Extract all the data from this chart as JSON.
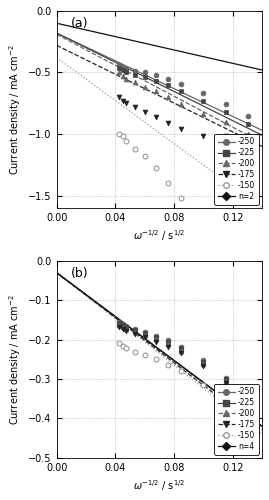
{
  "panel_a": {
    "label": "(a)",
    "ylim": [
      -1.6,
      0
    ],
    "yticks": [
      -1.5,
      -1.0,
      -0.5,
      0
    ],
    "ylabel": "Current density / mA cm$^{-2}$",
    "xlabel": "$\\omega^{-1/2}$ / s$^{1/2}$",
    "xlim": [
      0,
      0.14
    ],
    "xticks": [
      0,
      0.04,
      0.08,
      0.12
    ],
    "series": [
      {
        "label": "-250",
        "marker": "o",
        "linestyle": "-",
        "color": "#666666",
        "filled": true,
        "x_data": [
          0.0426,
          0.0451,
          0.0476,
          0.0535,
          0.0601,
          0.0674,
          0.0756,
          0.0849,
          0.1,
          0.1155,
          0.1301
        ],
        "y_data": [
          -0.44,
          -0.46,
          -0.47,
          -0.49,
          -0.5,
          -0.52,
          -0.55,
          -0.59,
          -0.67,
          -0.76,
          -0.85
        ],
        "fit_x": [
          0.0,
          0.14
        ],
        "fit_y": [
          -0.18,
          -0.97
        ]
      },
      {
        "label": "-225",
        "marker": "s",
        "linestyle": "-",
        "color": "#444444",
        "filled": true,
        "x_data": [
          0.0426,
          0.0451,
          0.0476,
          0.0535,
          0.0601,
          0.0674,
          0.0756,
          0.0849,
          0.1,
          0.1155,
          0.1301
        ],
        "y_data": [
          -0.46,
          -0.48,
          -0.5,
          -0.52,
          -0.54,
          -0.57,
          -0.6,
          -0.65,
          -0.73,
          -0.82,
          -0.92
        ],
        "fit_x": [
          0.0,
          0.14
        ],
        "fit_y": [
          -0.18,
          -1.01
        ]
      },
      {
        "label": "-200",
        "marker": "^",
        "linestyle": "--",
        "color": "#666666",
        "filled": true,
        "x_data": [
          0.0426,
          0.0451,
          0.0476,
          0.0535,
          0.0601,
          0.0674,
          0.0756,
          0.0849,
          0.1,
          0.1155,
          0.1301
        ],
        "y_data": [
          -0.5,
          -0.53,
          -0.55,
          -0.58,
          -0.62,
          -0.65,
          -0.7,
          -0.76,
          -0.84,
          -0.9,
          -1.0
        ],
        "fit_x": [
          0.0,
          0.14
        ],
        "fit_y": [
          -0.19,
          -1.07
        ]
      },
      {
        "label": "-175",
        "marker": "v",
        "linestyle": "--",
        "color": "#222222",
        "filled": true,
        "x_data": [
          0.0426,
          0.0451,
          0.0476,
          0.0535,
          0.0601,
          0.0674,
          0.0756,
          0.0849,
          0.1,
          0.1155,
          0.1301
        ],
        "y_data": [
          -0.7,
          -0.73,
          -0.75,
          -0.78,
          -0.82,
          -0.86,
          -0.91,
          -0.96,
          -1.02,
          -1.02,
          -1.02
        ],
        "fit_x": [
          0.0,
          0.14
        ],
        "fit_y": [
          -0.28,
          -1.1
        ]
      },
      {
        "label": "-150",
        "marker": "o",
        "linestyle": ":",
        "color": "#999999",
        "filled": false,
        "x_data": [
          0.0426,
          0.0451,
          0.0476,
          0.0535,
          0.0601,
          0.0674,
          0.0756,
          0.0849
        ],
        "y_data": [
          -1.0,
          -1.02,
          -1.06,
          -1.12,
          -1.18,
          -1.28,
          -1.4,
          -1.52
        ],
        "fit_x": [
          0.0,
          0.14
        ],
        "fit_y": [
          -0.38,
          -1.6
        ]
      },
      {
        "label": "n=2",
        "marker": "D",
        "linestyle": "-",
        "color": "#111111",
        "filled": true,
        "x_data": [],
        "y_data": [],
        "fit_x": [
          0.0,
          0.14
        ],
        "fit_y": [
          -0.1,
          -0.48
        ]
      }
    ]
  },
  "panel_b": {
    "label": "(b)",
    "ylim": [
      -0.5,
      0
    ],
    "yticks": [
      -0.5,
      -0.4,
      -0.3,
      -0.2,
      -0.1,
      0
    ],
    "ylabel": "Current density / mA cm$^{-2}$",
    "xlabel": "$\\omega^{-1/2}$ / s$^{1/2}$",
    "xlim": [
      0,
      0.14
    ],
    "xticks": [
      0,
      0.04,
      0.08,
      0.12
    ],
    "series": [
      {
        "label": "-250",
        "marker": "o",
        "linestyle": "-",
        "color": "#666666",
        "filled": true,
        "x_data": [
          0.0426,
          0.0451,
          0.0476,
          0.0535,
          0.0601,
          0.0674,
          0.0756,
          0.0849,
          0.1,
          0.1155,
          0.1301
        ],
        "y_data": [
          -0.155,
          -0.16,
          -0.165,
          -0.172,
          -0.18,
          -0.19,
          -0.202,
          -0.218,
          -0.252,
          -0.298,
          -0.342
        ],
        "fit_x": [
          0.0,
          0.14
        ],
        "fit_y": [
          -0.03,
          -0.42
        ]
      },
      {
        "label": "-225",
        "marker": "s",
        "linestyle": "-",
        "color": "#444444",
        "filled": true,
        "x_data": [
          0.0426,
          0.0451,
          0.0476,
          0.0535,
          0.0601,
          0.0674,
          0.0756,
          0.0849,
          0.1,
          0.1155,
          0.1301
        ],
        "y_data": [
          -0.158,
          -0.163,
          -0.168,
          -0.175,
          -0.183,
          -0.193,
          -0.205,
          -0.222,
          -0.256,
          -0.3,
          -0.345
        ],
        "fit_x": [
          0.0,
          0.14
        ],
        "fit_y": [
          -0.03,
          -0.42
        ]
      },
      {
        "label": "-200",
        "marker": "^",
        "linestyle": "--",
        "color": "#666666",
        "filled": true,
        "x_data": [
          0.0426,
          0.0451,
          0.0476,
          0.0535,
          0.0601,
          0.0674,
          0.0756,
          0.0849,
          0.1,
          0.1155,
          0.1301
        ],
        "y_data": [
          -0.162,
          -0.167,
          -0.173,
          -0.18,
          -0.188,
          -0.198,
          -0.21,
          -0.228,
          -0.262,
          -0.304,
          -0.348
        ],
        "fit_x": [
          0.0,
          0.14
        ],
        "fit_y": [
          -0.03,
          -0.42
        ]
      },
      {
        "label": "-175",
        "marker": "v",
        "linestyle": "--",
        "color": "#222222",
        "filled": true,
        "x_data": [
          0.0426,
          0.0451,
          0.0476,
          0.0535,
          0.0601,
          0.0674,
          0.0756,
          0.0849,
          0.1,
          0.1155,
          0.1301
        ],
        "y_data": [
          -0.168,
          -0.173,
          -0.179,
          -0.186,
          -0.194,
          -0.205,
          -0.218,
          -0.235,
          -0.268,
          -0.31,
          -0.352
        ],
        "fit_x": [
          0.0,
          0.14
        ],
        "fit_y": [
          -0.03,
          -0.43
        ]
      },
      {
        "label": "-150",
        "marker": "o",
        "linestyle": ":",
        "color": "#999999",
        "filled": false,
        "x_data": [
          0.0426,
          0.0451,
          0.0476,
          0.0535,
          0.0601,
          0.0674,
          0.0756,
          0.0849,
          0.1,
          0.1155,
          0.1301
        ],
        "y_data": [
          -0.208,
          -0.215,
          -0.222,
          -0.23,
          -0.238,
          -0.25,
          -0.264,
          -0.28,
          -0.314,
          -0.358,
          -0.403
        ],
        "fit_x": [
          0.0,
          0.14
        ],
        "fit_y": [
          -0.03,
          -0.44
        ]
      },
      {
        "label": "n=4",
        "marker": "D",
        "linestyle": "-",
        "color": "#111111",
        "filled": true,
        "x_data": [],
        "y_data": [],
        "fit_x": [
          0.0,
          0.14
        ],
        "fit_y": [
          -0.03,
          -0.42
        ]
      }
    ]
  }
}
